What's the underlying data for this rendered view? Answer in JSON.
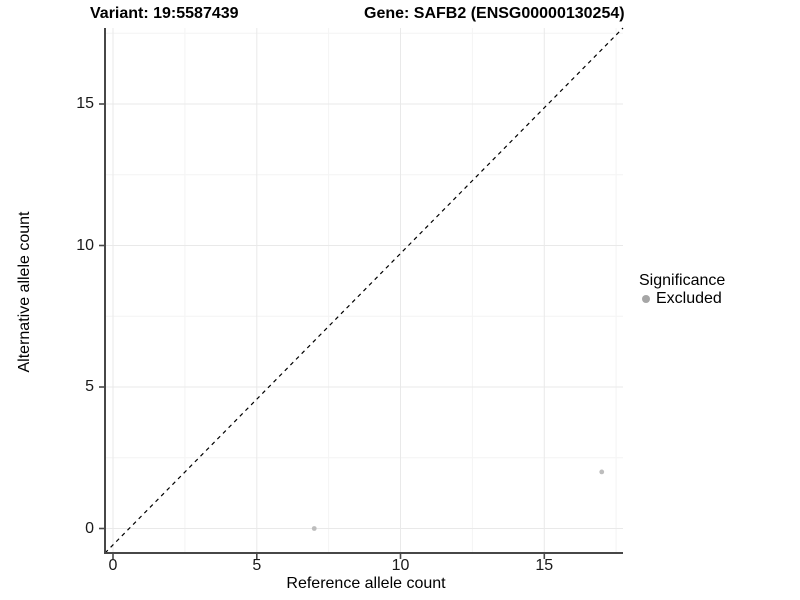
{
  "chart_data": {
    "type": "scatter",
    "title_left": "Variant: 19:5587439",
    "title_right": "Gene: SAFB2 (ENSG00000130254)",
    "xlabel": "Reference allele count",
    "ylabel": "Alternative allele count",
    "xlim": [
      -0.9,
      17.9
    ],
    "ylim": [
      -0.9,
      17.9
    ],
    "xticks": [
      0,
      5,
      10,
      15
    ],
    "yticks": [
      0,
      5,
      10,
      15
    ],
    "xtick_labels": [
      "0",
      "5",
      "10",
      "15"
    ],
    "ytick_labels": [
      "0",
      "5",
      "10",
      "15"
    ],
    "minor_grid_positions": [
      2.5,
      7.5,
      12.5,
      17.5
    ],
    "grid": "major+minor",
    "legend_position": "right",
    "reference_line": {
      "type": "identity y=x",
      "style": "dashed",
      "color": "#000000"
    },
    "series": [
      {
        "name": "Excluded",
        "color": "#bdbdbd",
        "points": [
          {
            "x": 7,
            "y": 0
          },
          {
            "x": 17,
            "y": 2
          }
        ]
      }
    ],
    "legend": {
      "title": "Significance",
      "entries": [
        {
          "label": "Excluded",
          "color": "#a6a6a6",
          "marker": "circle"
        }
      ]
    },
    "colors": {
      "background": "#ffffff",
      "grid_major": "#e9e9e9",
      "grid_minor": "#f4f4f4",
      "axis_line": "#474747",
      "tick_mark": "#474747",
      "text": "#000000",
      "point": "#bdbdbd"
    }
  }
}
